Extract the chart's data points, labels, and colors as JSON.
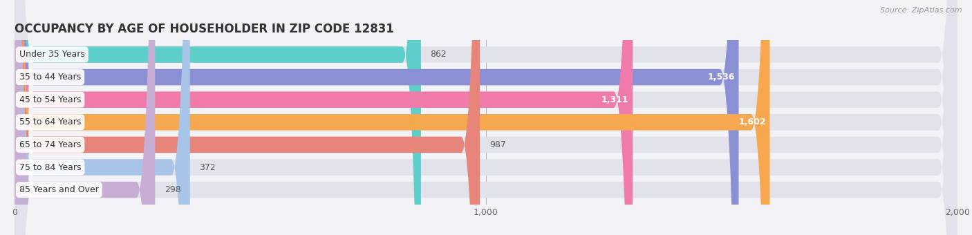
{
  "title": "OCCUPANCY BY AGE OF HOUSEHOLDER IN ZIP CODE 12831",
  "source": "Source: ZipAtlas.com",
  "categories": [
    "Under 35 Years",
    "35 to 44 Years",
    "45 to 54 Years",
    "55 to 64 Years",
    "65 to 74 Years",
    "75 to 84 Years",
    "85 Years and Over"
  ],
  "values": [
    862,
    1536,
    1311,
    1602,
    987,
    372,
    298
  ],
  "bar_colors": [
    "#5ececa",
    "#8b8fd4",
    "#f07aaa",
    "#f5a84e",
    "#e8857a",
    "#a8c4e8",
    "#c8aed4"
  ],
  "xlim": [
    0,
    2000
  ],
  "xticks": [
    0,
    1000,
    2000
  ],
  "background_color": "#f2f2f7",
  "bar_background_color": "#e2e2ea",
  "title_fontsize": 12,
  "label_fontsize": 9,
  "value_fontsize": 9
}
